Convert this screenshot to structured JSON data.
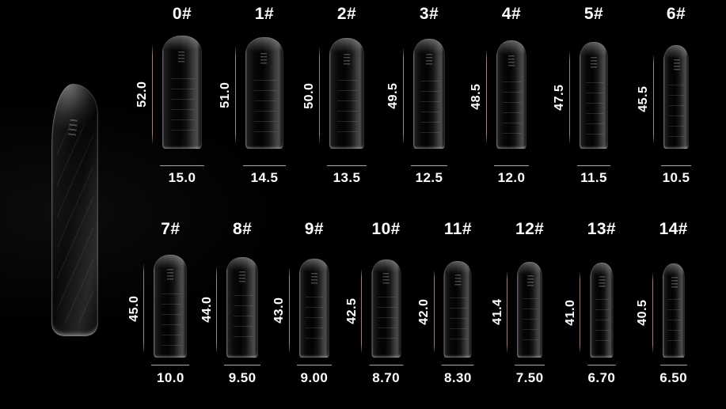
{
  "page": {
    "background": "#000000"
  },
  "colors": {
    "text": "#ffffff",
    "length_line": "#96837a",
    "width_line": "#aba8a5"
  },
  "hero": {
    "name": "large-nail-tip"
  },
  "rows": [
    {
      "name": "top",
      "items": [
        {
          "label": "0#",
          "length": "52.0",
          "width": "15.0"
        },
        {
          "label": "1#",
          "length": "51.0",
          "width": "14.5"
        },
        {
          "label": "2#",
          "length": "50.0",
          "width": "13.5"
        },
        {
          "label": "3#",
          "length": "49.5",
          "width": "12.5"
        },
        {
          "label": "4#",
          "length": "48.5",
          "width": "12.0"
        },
        {
          "label": "5#",
          "length": "47.5",
          "width": "11.5"
        },
        {
          "label": "6#",
          "length": "45.5",
          "width": "10.5"
        }
      ]
    },
    {
      "name": "bottom",
      "items": [
        {
          "label": "7#",
          "length": "45.0",
          "width": "10.0"
        },
        {
          "label": "8#",
          "length": "44.0",
          "width": "9.50"
        },
        {
          "label": "9#",
          "length": "43.0",
          "width": "9.00"
        },
        {
          "label": "10#",
          "length": "42.5",
          "width": "8.70"
        },
        {
          "label": "11#",
          "length": "42.0",
          "width": "8.30"
        },
        {
          "label": "12#",
          "length": "41.4",
          "width": "7.50"
        },
        {
          "label": "13#",
          "length": "41.0",
          "width": "6.70"
        },
        {
          "label": "14#",
          "length": "40.5",
          "width": "6.50"
        }
      ]
    }
  ],
  "chart_data": {
    "type": "table",
    "title": "",
    "categories": [
      "0#",
      "1#",
      "2#",
      "3#",
      "4#",
      "5#",
      "6#",
      "7#",
      "8#",
      "9#",
      "10#",
      "11#",
      "12#",
      "13#",
      "14#"
    ],
    "series": [
      {
        "name": "length_mm",
        "values": [
          52.0,
          51.0,
          50.0,
          49.5,
          48.5,
          47.5,
          45.5,
          45.0,
          44.0,
          43.0,
          42.5,
          42.0,
          41.4,
          41.0,
          40.5
        ]
      },
      {
        "name": "width_mm",
        "values": [
          15.0,
          14.5,
          13.5,
          12.5,
          12.0,
          11.5,
          10.5,
          10.0,
          9.5,
          9.0,
          8.7,
          8.3,
          7.5,
          6.7,
          6.5
        ]
      }
    ],
    "layout": {
      "rows": [
        [
          "0#",
          "1#",
          "2#",
          "3#",
          "4#",
          "5#",
          "6#"
        ],
        [
          "7#",
          "8#",
          "9#",
          "10#",
          "11#",
          "12#",
          "13#",
          "14#"
        ]
      ],
      "background": "black",
      "annotation_style": "length line left of tip, width line under tip"
    }
  }
}
